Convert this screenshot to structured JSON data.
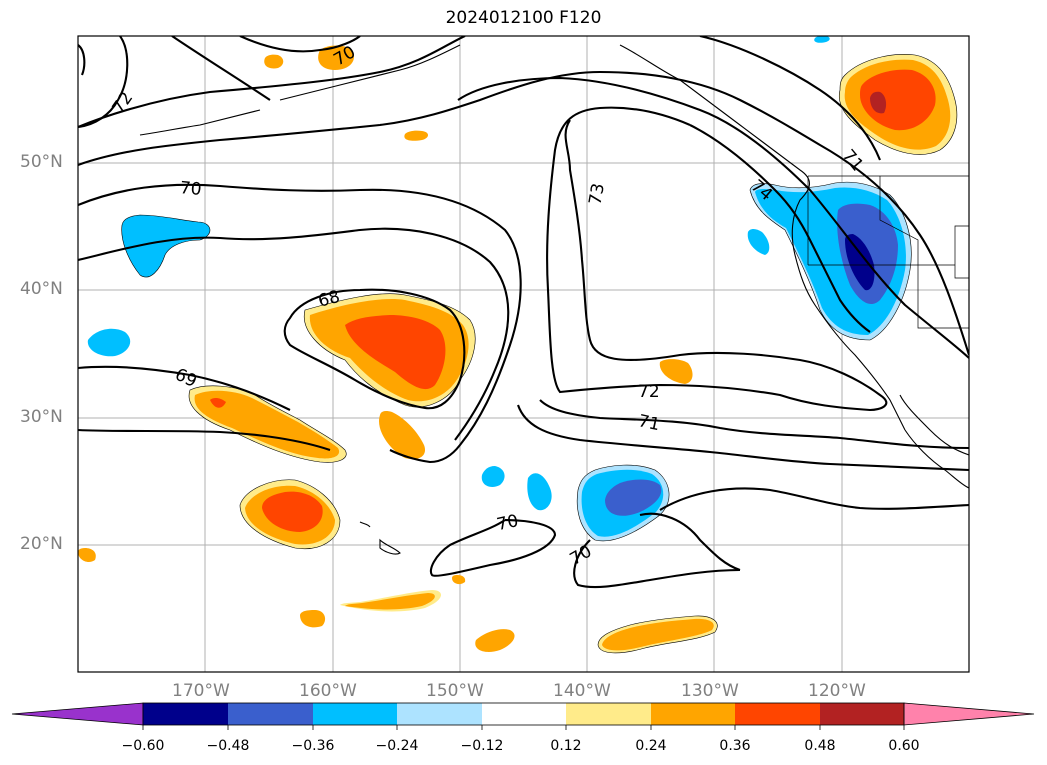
{
  "title": "2024012100 F120",
  "map": {
    "projection": "cylindrical",
    "lon_range": [
      -180,
      -110
    ],
    "lat_range": [
      10,
      60
    ],
    "gridlines": true,
    "lat_labels": [
      "50°N",
      "40°N",
      "30°N",
      "20°N"
    ],
    "lon_labels": [
      "170°W",
      "160°W",
      "150°W",
      "140°W",
      "130°W",
      "120°W"
    ],
    "contour_labels": [
      "72",
      "70",
      "70",
      "68",
      "69",
      "73",
      "72",
      "71",
      "70",
      "70",
      "71",
      "74"
    ]
  },
  "colorbar": {
    "extend": "both",
    "colors": [
      "#9932CC",
      "#00008B",
      "#3A5FCD",
      "#00BFFF",
      "#ADE3FF",
      "#FFFFFF",
      "#FFEB8A",
      "#FFA500",
      "#FF4500",
      "#B22222",
      "#FF82AB"
    ],
    "tick_labels": [
      "−0.60",
      "−0.48",
      "−0.36",
      "−0.24",
      "−0.12",
      "0.12",
      "0.24",
      "0.36",
      "0.48",
      "0.60"
    ]
  }
}
